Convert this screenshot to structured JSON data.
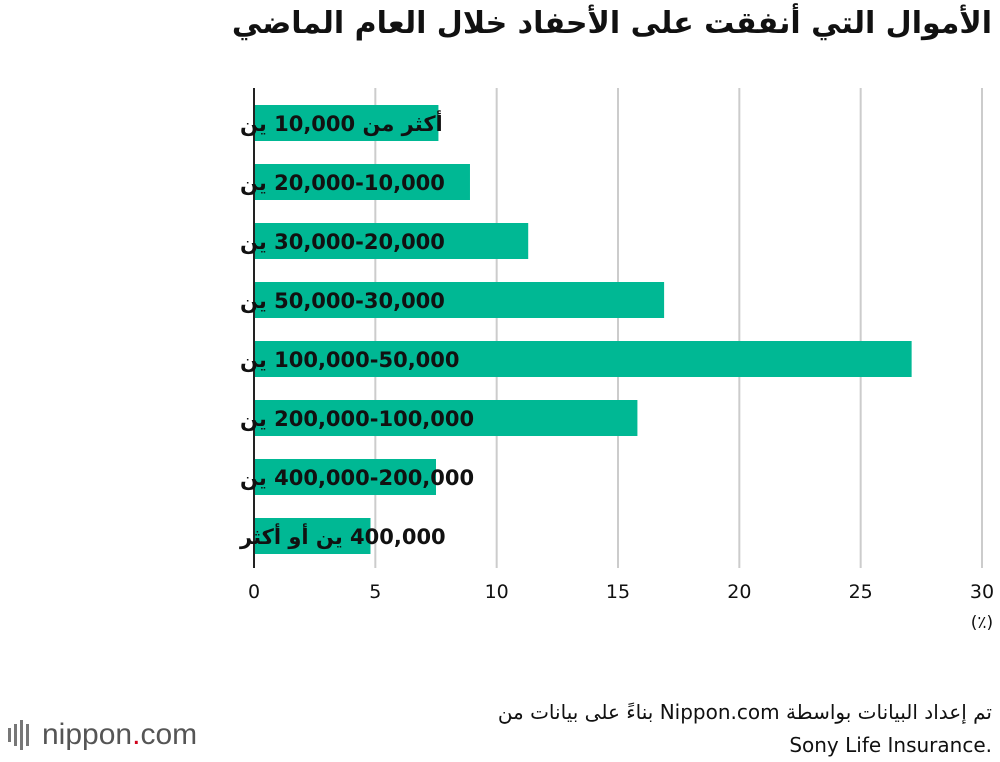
{
  "chart_data": {
    "type": "bar",
    "orientation": "horizontal",
    "title": "الأموال التي أنفقت على الأحفاد خلال العام الماضي",
    "categories": [
      "أكثر من 10,000 ين",
      "20,000-10,000 ين",
      "30,000-20,000 ين",
      "50,000-30,000 ين",
      "100,000-50,000 ين",
      "200,000-100,000 ين",
      "400,000-200,000 ين",
      "400,000 ين أو أكثر"
    ],
    "values": [
      7.6,
      8.9,
      11.3,
      16.9,
      27.1,
      15.8,
      7.5,
      4.8
    ],
    "xlim": [
      0,
      30
    ],
    "xticks": [
      0,
      5,
      10,
      15,
      20,
      25,
      30
    ],
    "tick_labels": [
      "0",
      "5",
      "10",
      "15",
      "20",
      "25",
      "30"
    ],
    "unit": "(٪)",
    "bar_color": "#00b894",
    "grid": true
  },
  "source": {
    "line1": "تم إعداد البيانات بواسطة Nippon.com بناءً على بيانات من",
    "line2": ".Sony Life Insurance"
  },
  "logo": {
    "name": "nippon",
    "dot": ".",
    "tld": "com"
  }
}
